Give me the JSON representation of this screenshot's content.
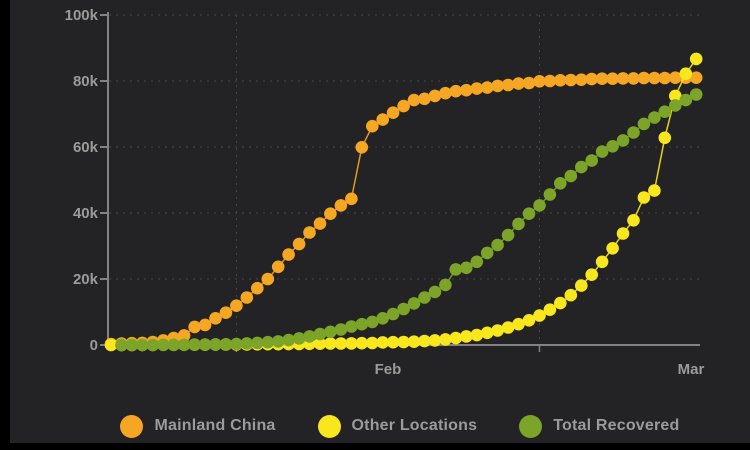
{
  "colors": {
    "frame": "#000000",
    "panel": "#232224",
    "grid": "#4d4d4d",
    "axis": "#828282",
    "label": "#9b9b9b"
  },
  "chart_data": {
    "type": "line",
    "title": "",
    "style": "dotted-line-series",
    "x_axis": {
      "tick_labels": [
        "Feb",
        "Mar"
      ],
      "month_start_indices": [
        12,
        41
      ],
      "points_total": 57
    },
    "y_axis": {
      "tick_labels": [
        "0",
        "20k",
        "40k",
        "60k",
        "80k",
        "100k"
      ],
      "range_thousands": [
        0,
        100
      ]
    },
    "grid": "dashed",
    "legend_position": "bottom",
    "series": [
      {
        "name": "Mainland China",
        "color": "#F5A623",
        "values_thousands": [
          0.3,
          0.44,
          0.55,
          0.64,
          0.92,
          1.4,
          2.1,
          2.9,
          5.5,
          6.1,
          8.1,
          9.8,
          11.9,
          14.4,
          17.2,
          20.0,
          23.7,
          27.4,
          30.6,
          34.1,
          36.8,
          39.8,
          42.3,
          44.3,
          59.9,
          66.3,
          68.3,
          70.4,
          72.4,
          74.2,
          74.6,
          75.5,
          76.3,
          76.9,
          77.2,
          77.7,
          78.0,
          78.5,
          78.8,
          79.2,
          79.4,
          79.9,
          80.0,
          80.2,
          80.3,
          80.4,
          80.6,
          80.7,
          80.7,
          80.8,
          80.8,
          80.9,
          80.9,
          80.9,
          81.0,
          81.0,
          81.0
        ]
      },
      {
        "name": "Other Locations",
        "color": "#F8E71C",
        "values_thousands": [
          0.0,
          0.01,
          0.01,
          0.02,
          0.03,
          0.05,
          0.06,
          0.08,
          0.09,
          0.1,
          0.12,
          0.15,
          0.16,
          0.18,
          0.2,
          0.23,
          0.25,
          0.28,
          0.3,
          0.35,
          0.4,
          0.44,
          0.46,
          0.5,
          0.55,
          0.6,
          0.8,
          0.85,
          0.9,
          1.0,
          1.2,
          1.4,
          1.7,
          2.1,
          2.6,
          3.0,
          3.7,
          4.4,
          5.3,
          6.3,
          7.5,
          8.9,
          10.7,
          12.7,
          15.1,
          18.0,
          21.3,
          25.2,
          29.3,
          33.8,
          37.8,
          44.7,
          46.8,
          62.8,
          75.5,
          82.2,
          86.7
        ]
      },
      {
        "name": "Total Recovered",
        "color": "#7BA428",
        "values_thousands": [
          null,
          0.03,
          0.03,
          0.04,
          0.04,
          0.05,
          0.06,
          0.06,
          0.1,
          0.13,
          0.17,
          0.22,
          0.28,
          0.47,
          0.64,
          0.85,
          1.1,
          1.5,
          2.0,
          2.6,
          3.3,
          4.0,
          4.7,
          5.6,
          6.3,
          7.0,
          8.1,
          9.4,
          10.9,
          12.6,
          14.4,
          16.1,
          18.2,
          22.9,
          23.4,
          25.2,
          27.9,
          30.3,
          33.3,
          36.7,
          39.8,
          42.3,
          45.6,
          49.0,
          51.2,
          53.9,
          55.9,
          58.6,
          60.2,
          62.0,
          64.4,
          67.0,
          68.9,
          70.7,
          72.6,
          74.2,
          75.9
        ]
      }
    ]
  },
  "legend": {
    "items": [
      {
        "label": "Mainland China"
      },
      {
        "label": "Other Locations"
      },
      {
        "label": "Total Recovered"
      }
    ]
  }
}
